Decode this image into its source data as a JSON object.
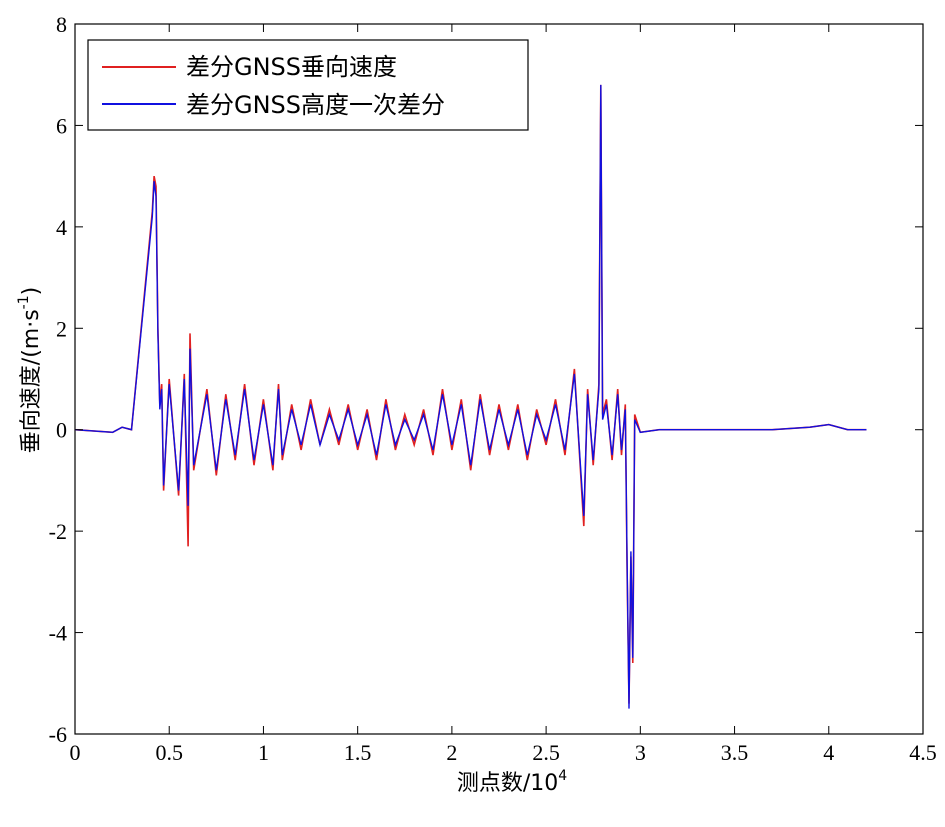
{
  "chart_data": {
    "type": "line",
    "xlabel": "测点数/10",
    "xlabel_exponent": "4",
    "ylabel": "垂向速度/(m·s",
    "ylabel_exponent": "-1",
    "ylabel_close": ")",
    "xlim": [
      0,
      4.5
    ],
    "ylim": [
      -6,
      8
    ],
    "xticks": [
      0,
      0.5,
      1,
      1.5,
      2,
      2.5,
      3,
      3.5,
      4,
      4.5
    ],
    "xtick_labels": [
      "0",
      "0.5",
      "1",
      "1.5",
      "2",
      "2.5",
      "3",
      "3.5",
      "4",
      "4.5"
    ],
    "yticks": [
      -6,
      -4,
      -2,
      0,
      2,
      4,
      6,
      8
    ],
    "ytick_labels": [
      "-6",
      "-4",
      "-2",
      "0",
      "2",
      "4",
      "6",
      "8"
    ],
    "grid": false,
    "legend_position": "top-left",
    "series": [
      {
        "name": "差分GNSS垂向速度",
        "color": "#e02020",
        "x": [
          0,
          0.2,
          0.25,
          0.3,
          0.41,
          0.42,
          0.43,
          0.44,
          0.45,
          0.46,
          0.47,
          0.5,
          0.55,
          0.58,
          0.6,
          0.61,
          0.63,
          0.7,
          0.75,
          0.8,
          0.85,
          0.9,
          0.95,
          1.0,
          1.05,
          1.08,
          1.1,
          1.15,
          1.2,
          1.25,
          1.3,
          1.35,
          1.4,
          1.45,
          1.5,
          1.55,
          1.6,
          1.65,
          1.7,
          1.75,
          1.8,
          1.85,
          1.9,
          1.95,
          2.0,
          2.05,
          2.1,
          2.15,
          2.2,
          2.25,
          2.3,
          2.35,
          2.4,
          2.45,
          2.5,
          2.55,
          2.6,
          2.65,
          2.7,
          2.72,
          2.75,
          2.78,
          2.79,
          2.8,
          2.82,
          2.85,
          2.88,
          2.9,
          2.92,
          2.93,
          2.94,
          2.95,
          2.96,
          2.97,
          3.0,
          3.1,
          3.3,
          3.5,
          3.7,
          3.9,
          4.0,
          4.1,
          4.2
        ],
        "y": [
          0.0,
          -0.05,
          0.05,
          0.0,
          4.3,
          5.0,
          4.8,
          2.0,
          0.5,
          0.9,
          -1.2,
          1.0,
          -1.3,
          1.1,
          -2.3,
          1.9,
          -0.8,
          0.8,
          -0.9,
          0.7,
          -0.6,
          0.9,
          -0.7,
          0.6,
          -0.8,
          0.9,
          -0.6,
          0.5,
          -0.4,
          0.6,
          -0.3,
          0.4,
          -0.3,
          0.5,
          -0.4,
          0.4,
          -0.6,
          0.6,
          -0.4,
          0.3,
          -0.3,
          0.4,
          -0.5,
          0.8,
          -0.4,
          0.6,
          -0.8,
          0.7,
          -0.5,
          0.5,
          -0.4,
          0.5,
          -0.6,
          0.4,
          -0.3,
          0.6,
          -0.5,
          1.2,
          -1.9,
          0.8,
          -0.7,
          0.9,
          6.8,
          0.3,
          0.6,
          -0.6,
          0.8,
          -0.5,
          0.5,
          -2.8,
          -5.4,
          -2.5,
          -4.6,
          0.3,
          -0.05,
          0.0,
          0.0,
          0.0,
          0.0,
          0.05,
          0.1,
          0.0,
          0.0
        ]
      },
      {
        "name": "差分GNSS高度一次差分",
        "color": "#1010e0",
        "x": [
          0,
          0.2,
          0.25,
          0.3,
          0.41,
          0.42,
          0.43,
          0.44,
          0.45,
          0.46,
          0.47,
          0.5,
          0.55,
          0.58,
          0.6,
          0.61,
          0.63,
          0.7,
          0.75,
          0.8,
          0.85,
          0.9,
          0.95,
          1.0,
          1.05,
          1.08,
          1.1,
          1.15,
          1.2,
          1.25,
          1.3,
          1.35,
          1.4,
          1.45,
          1.5,
          1.55,
          1.6,
          1.65,
          1.7,
          1.75,
          1.8,
          1.85,
          1.9,
          1.95,
          2.0,
          2.05,
          2.1,
          2.15,
          2.2,
          2.25,
          2.3,
          2.35,
          2.4,
          2.45,
          2.5,
          2.55,
          2.6,
          2.65,
          2.7,
          2.72,
          2.75,
          2.78,
          2.79,
          2.8,
          2.82,
          2.85,
          2.88,
          2.9,
          2.92,
          2.93,
          2.94,
          2.95,
          2.96,
          2.97,
          3.0,
          3.1,
          3.3,
          3.5,
          3.7,
          3.9,
          4.0,
          4.1,
          4.2
        ],
        "y": [
          0.0,
          -0.05,
          0.05,
          0.0,
          4.2,
          4.9,
          4.6,
          1.9,
          0.4,
          0.8,
          -1.1,
          0.9,
          -1.2,
          1.0,
          -1.5,
          1.6,
          -0.7,
          0.7,
          -0.8,
          0.6,
          -0.5,
          0.8,
          -0.6,
          0.5,
          -0.7,
          0.8,
          -0.5,
          0.4,
          -0.3,
          0.5,
          -0.3,
          0.3,
          -0.2,
          0.4,
          -0.3,
          0.3,
          -0.5,
          0.5,
          -0.3,
          0.2,
          -0.2,
          0.3,
          -0.4,
          0.7,
          -0.3,
          0.5,
          -0.7,
          0.6,
          -0.4,
          0.4,
          -0.3,
          0.4,
          -0.5,
          0.3,
          -0.2,
          0.5,
          -0.4,
          1.1,
          -1.7,
          0.7,
          -0.6,
          0.8,
          6.8,
          0.2,
          0.5,
          -0.5,
          0.7,
          -0.4,
          0.4,
          -2.6,
          -5.5,
          -2.4,
          -4.5,
          0.2,
          -0.05,
          0.0,
          0.0,
          0.0,
          0.0,
          0.05,
          0.1,
          0.0,
          0.0
        ]
      }
    ]
  }
}
